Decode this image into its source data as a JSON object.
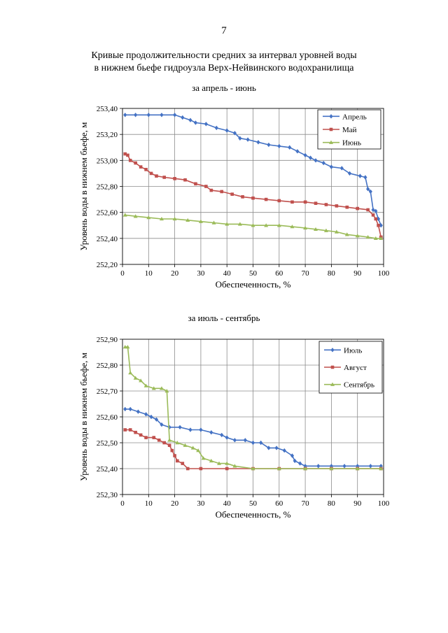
{
  "page_number": "7",
  "title_line1": "Кривые продолжительности средних за интервал уровней воды",
  "title_line2": "в нижнем бьефе гидроузла Верх-Нейвинского водохранилища",
  "chart_data": [
    {
      "type": "line",
      "title": "за апрель - июнь",
      "xlabel": "Обеспеченность, %",
      "ylabel": "Уровень воды в нижнем бьефе, м",
      "xlim": [
        0,
        100
      ],
      "ylim": [
        252.2,
        253.4
      ],
      "xticks": [
        "0",
        "10",
        "20",
        "30",
        "40",
        "50",
        "60",
        "70",
        "80",
        "90",
        "100"
      ],
      "yticks": [
        "252,20",
        "252,40",
        "252,60",
        "252,80",
        "253,00",
        "253,20",
        "253,40"
      ],
      "grid": true,
      "legend": "top-right",
      "series": [
        {
          "name": "Апрель",
          "color": "#4472c4",
          "marker": "diamond",
          "points": [
            [
              1,
              253.35
            ],
            [
              5,
              253.35
            ],
            [
              10,
              253.35
            ],
            [
              15,
              253.35
            ],
            [
              20,
              253.35
            ],
            [
              23,
              253.33
            ],
            [
              26,
              253.31
            ],
            [
              28,
              253.29
            ],
            [
              32,
              253.28
            ],
            [
              36,
              253.25
            ],
            [
              40,
              253.23
            ],
            [
              43,
              253.21
            ],
            [
              45,
              253.17
            ],
            [
              48,
              253.16
            ],
            [
              52,
              253.14
            ],
            [
              56,
              253.12
            ],
            [
              60,
              253.11
            ],
            [
              64,
              253.1
            ],
            [
              67,
              253.07
            ],
            [
              70,
              253.04
            ],
            [
              72,
              253.02
            ],
            [
              74,
              253.0
            ],
            [
              77,
              252.98
            ],
            [
              80,
              252.95
            ],
            [
              84,
              252.94
            ],
            [
              87,
              252.9
            ],
            [
              91,
              252.88
            ],
            [
              93,
              252.87
            ],
            [
              94,
              252.78
            ],
            [
              95,
              252.76
            ],
            [
              96,
              252.62
            ],
            [
              97,
              252.61
            ],
            [
              98,
              252.55
            ],
            [
              99,
              252.5
            ]
          ]
        },
        {
          "name": "Май",
          "color": "#c0504d",
          "marker": "square",
          "points": [
            [
              1,
              253.05
            ],
            [
              2,
              253.04
            ],
            [
              3,
              253.0
            ],
            [
              5,
              252.98
            ],
            [
              7,
              252.95
            ],
            [
              9,
              252.93
            ],
            [
              11,
              252.9
            ],
            [
              13,
              252.88
            ],
            [
              16,
              252.87
            ],
            [
              20,
              252.86
            ],
            [
              24,
              252.85
            ],
            [
              28,
              252.82
            ],
            [
              32,
              252.8
            ],
            [
              34,
              252.77
            ],
            [
              38,
              252.76
            ],
            [
              42,
              252.74
            ],
            [
              46,
              252.72
            ],
            [
              50,
              252.71
            ],
            [
              55,
              252.7
            ],
            [
              60,
              252.69
            ],
            [
              65,
              252.68
            ],
            [
              70,
              252.68
            ],
            [
              74,
              252.67
            ],
            [
              78,
              252.66
            ],
            [
              82,
              252.65
            ],
            [
              86,
              252.64
            ],
            [
              90,
              252.63
            ],
            [
              94,
              252.62
            ],
            [
              96,
              252.58
            ],
            [
              97,
              252.55
            ],
            [
              98,
              252.5
            ],
            [
              99,
              252.41
            ]
          ]
        },
        {
          "name": "Июнь",
          "color": "#9bbb59",
          "marker": "triangle",
          "points": [
            [
              1,
              252.58
            ],
            [
              5,
              252.57
            ],
            [
              10,
              252.56
            ],
            [
              15,
              252.55
            ],
            [
              20,
              252.55
            ],
            [
              25,
              252.54
            ],
            [
              30,
              252.53
            ],
            [
              35,
              252.52
            ],
            [
              40,
              252.51
            ],
            [
              45,
              252.51
            ],
            [
              50,
              252.5
            ],
            [
              55,
              252.5
            ],
            [
              60,
              252.5
            ],
            [
              65,
              252.49
            ],
            [
              70,
              252.48
            ],
            [
              74,
              252.47
            ],
            [
              78,
              252.46
            ],
            [
              82,
              252.45
            ],
            [
              86,
              252.43
            ],
            [
              90,
              252.42
            ],
            [
              94,
              252.41
            ],
            [
              97,
              252.4
            ],
            [
              99,
              252.4
            ]
          ]
        }
      ]
    },
    {
      "type": "line",
      "title": "за июль - сентябрь",
      "xlabel": "Обеспеченность, %",
      "ylabel": "Уровень воды в нижнем бьефе, м",
      "xlim": [
        0,
        100
      ],
      "ylim": [
        252.3,
        252.9
      ],
      "xticks": [
        "0",
        "10",
        "20",
        "30",
        "40",
        "50",
        "60",
        "70",
        "80",
        "90",
        "100"
      ],
      "yticks": [
        "252,30",
        "252,40",
        "252,50",
        "252,60",
        "252,70",
        "252,80",
        "252,90"
      ],
      "grid": true,
      "legend": "top-right",
      "series": [
        {
          "name": "Июль",
          "color": "#4472c4",
          "marker": "diamond",
          "points": [
            [
              1,
              252.63
            ],
            [
              3,
              252.63
            ],
            [
              6,
              252.62
            ],
            [
              9,
              252.61
            ],
            [
              11,
              252.6
            ],
            [
              13,
              252.59
            ],
            [
              15,
              252.57
            ],
            [
              18,
              252.56
            ],
            [
              22,
              252.56
            ],
            [
              26,
              252.55
            ],
            [
              30,
              252.55
            ],
            [
              34,
              252.54
            ],
            [
              38,
              252.53
            ],
            [
              40,
              252.52
            ],
            [
              43,
              252.51
            ],
            [
              47,
              252.51
            ],
            [
              50,
              252.5
            ],
            [
              53,
              252.5
            ],
            [
              56,
              252.48
            ],
            [
              59,
              252.48
            ],
            [
              62,
              252.47
            ],
            [
              65,
              252.45
            ],
            [
              66,
              252.43
            ],
            [
              68,
              252.42
            ],
            [
              70,
              252.41
            ],
            [
              75,
              252.41
            ],
            [
              80,
              252.41
            ],
            [
              85,
              252.41
            ],
            [
              90,
              252.41
            ],
            [
              95,
              252.41
            ],
            [
              99,
              252.41
            ]
          ]
        },
        {
          "name": "Август",
          "color": "#c0504d",
          "marker": "square",
          "points": [
            [
              1,
              252.55
            ],
            [
              3,
              252.55
            ],
            [
              5,
              252.54
            ],
            [
              7,
              252.53
            ],
            [
              9,
              252.52
            ],
            [
              12,
              252.52
            ],
            [
              14,
              252.51
            ],
            [
              16,
              252.5
            ],
            [
              18,
              252.49
            ],
            [
              19,
              252.47
            ],
            [
              20,
              252.45
            ],
            [
              21,
              252.43
            ],
            [
              23,
              252.42
            ],
            [
              25,
              252.4
            ],
            [
              30,
              252.4
            ],
            [
              40,
              252.4
            ],
            [
              50,
              252.4
            ],
            [
              60,
              252.4
            ],
            [
              70,
              252.4
            ],
            [
              80,
              252.4
            ],
            [
              90,
              252.4
            ],
            [
              99,
              252.4
            ]
          ]
        },
        {
          "name": "Сентябрь",
          "color": "#9bbb59",
          "marker": "triangle",
          "points": [
            [
              1,
              252.87
            ],
            [
              2,
              252.87
            ],
            [
              3,
              252.77
            ],
            [
              5,
              252.75
            ],
            [
              7,
              252.74
            ],
            [
              9,
              252.72
            ],
            [
              12,
              252.71
            ],
            [
              15,
              252.71
            ],
            [
              17,
              252.7
            ],
            [
              18,
              252.51
            ],
            [
              21,
              252.5
            ],
            [
              24,
              252.49
            ],
            [
              27,
              252.48
            ],
            [
              29,
              252.47
            ],
            [
              31,
              252.44
            ],
            [
              34,
              252.43
            ],
            [
              37,
              252.42
            ],
            [
              40,
              252.42
            ],
            [
              43,
              252.41
            ],
            [
              50,
              252.4
            ],
            [
              60,
              252.4
            ],
            [
              70,
              252.4
            ],
            [
              80,
              252.4
            ],
            [
              90,
              252.4
            ],
            [
              99,
              252.4
            ]
          ]
        }
      ]
    }
  ]
}
